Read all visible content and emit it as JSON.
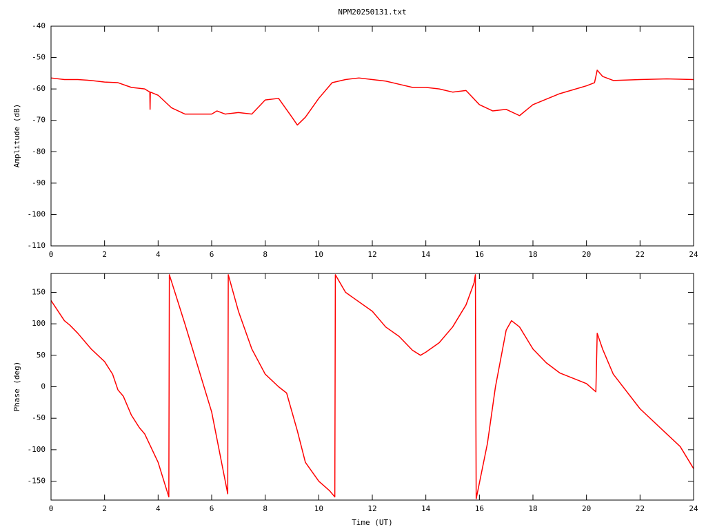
{
  "chart_data": [
    {
      "type": "line",
      "title": "NPM20250131.txt",
      "y_label": "Amplitude (dB)",
      "color": "#ff0000",
      "x": [
        0,
        0.5,
        1,
        1.5,
        2,
        2.5,
        3,
        3.5,
        3.69,
        3.7,
        3.71,
        4,
        4.5,
        5,
        5.5,
        6,
        6.2,
        6.5,
        7,
        7.5,
        8,
        8.5,
        9,
        9.2,
        9.5,
        10,
        10.5,
        11,
        11.5,
        12,
        12.5,
        13,
        13.5,
        14,
        14.5,
        15,
        15.5,
        16,
        16.5,
        17,
        17.5,
        18,
        19,
        20,
        20.3,
        20.4,
        20.6,
        21,
        22,
        23,
        24
      ],
      "values": [
        -56.5,
        -57,
        -57,
        -57.3,
        -57.8,
        -58,
        -59.5,
        -60,
        -61,
        -66.5,
        -61,
        -62,
        -66,
        -68,
        -68,
        -68,
        -67,
        -68,
        -67.5,
        -68,
        -63.5,
        -63,
        -69,
        -71.5,
        -69,
        -63,
        -58,
        -57,
        -56.5,
        -57,
        -57.5,
        -58.5,
        -59.5,
        -59.5,
        -60,
        -61,
        -60.5,
        -65,
        -67,
        -66.5,
        -68.5,
        -65,
        -61.5,
        -59,
        -58,
        -54,
        -56,
        -57.3,
        -57,
        -56.8,
        -57
      ],
      "xlim": [
        0,
        24
      ],
      "xticks": [
        0,
        2,
        4,
        6,
        8,
        10,
        12,
        14,
        16,
        18,
        20,
        22,
        24
      ],
      "ylim": [
        -110,
        -40
      ],
      "yticks": [
        -110,
        -100,
        -90,
        -80,
        -70,
        -60,
        -50,
        -40
      ]
    },
    {
      "type": "line",
      "x_label": "Time (UT)",
      "y_label": "Phase (deg)",
      "color": "#ff0000",
      "x": [
        0,
        0.5,
        0.7,
        1,
        1.5,
        2,
        2.3,
        2.5,
        2.7,
        3,
        3.3,
        3.5,
        4,
        4.4,
        4.42,
        5,
        6,
        6.6,
        6.62,
        7,
        7.5,
        8,
        8.5,
        8.8,
        9,
        9.2,
        9.5,
        10,
        10.4,
        10.6,
        10.62,
        11,
        12,
        12.5,
        13,
        13.5,
        13.8,
        14,
        14.5,
        15,
        15.5,
        15.8,
        15.85,
        15.88,
        16.3,
        16.6,
        17,
        17.2,
        17.5,
        18,
        18.5,
        19,
        20,
        20.35,
        20.4,
        20.6,
        21,
        22,
        23,
        23.5,
        24
      ],
      "values": [
        137,
        105,
        98,
        85,
        60,
        40,
        20,
        -5,
        -15,
        -45,
        -65,
        -75,
        -120,
        -175,
        178,
        100,
        -40,
        -170,
        178,
        120,
        60,
        20,
        0,
        -10,
        -40,
        -70,
        -120,
        -150,
        -165,
        -175,
        178,
        150,
        120,
        95,
        80,
        58,
        50,
        55,
        70,
        95,
        130,
        165,
        178,
        -178,
        -90,
        0,
        90,
        105,
        95,
        60,
        38,
        22,
        5,
        -8,
        85,
        60,
        20,
        -35,
        -75,
        -95,
        -130
      ],
      "xlim": [
        0,
        24
      ],
      "xticks": [
        0,
        2,
        4,
        6,
        8,
        10,
        12,
        14,
        16,
        18,
        20,
        22,
        24
      ],
      "ylim": [
        -180,
        180
      ],
      "yticks": [
        -150,
        -100,
        -50,
        0,
        50,
        100,
        150
      ]
    }
  ]
}
